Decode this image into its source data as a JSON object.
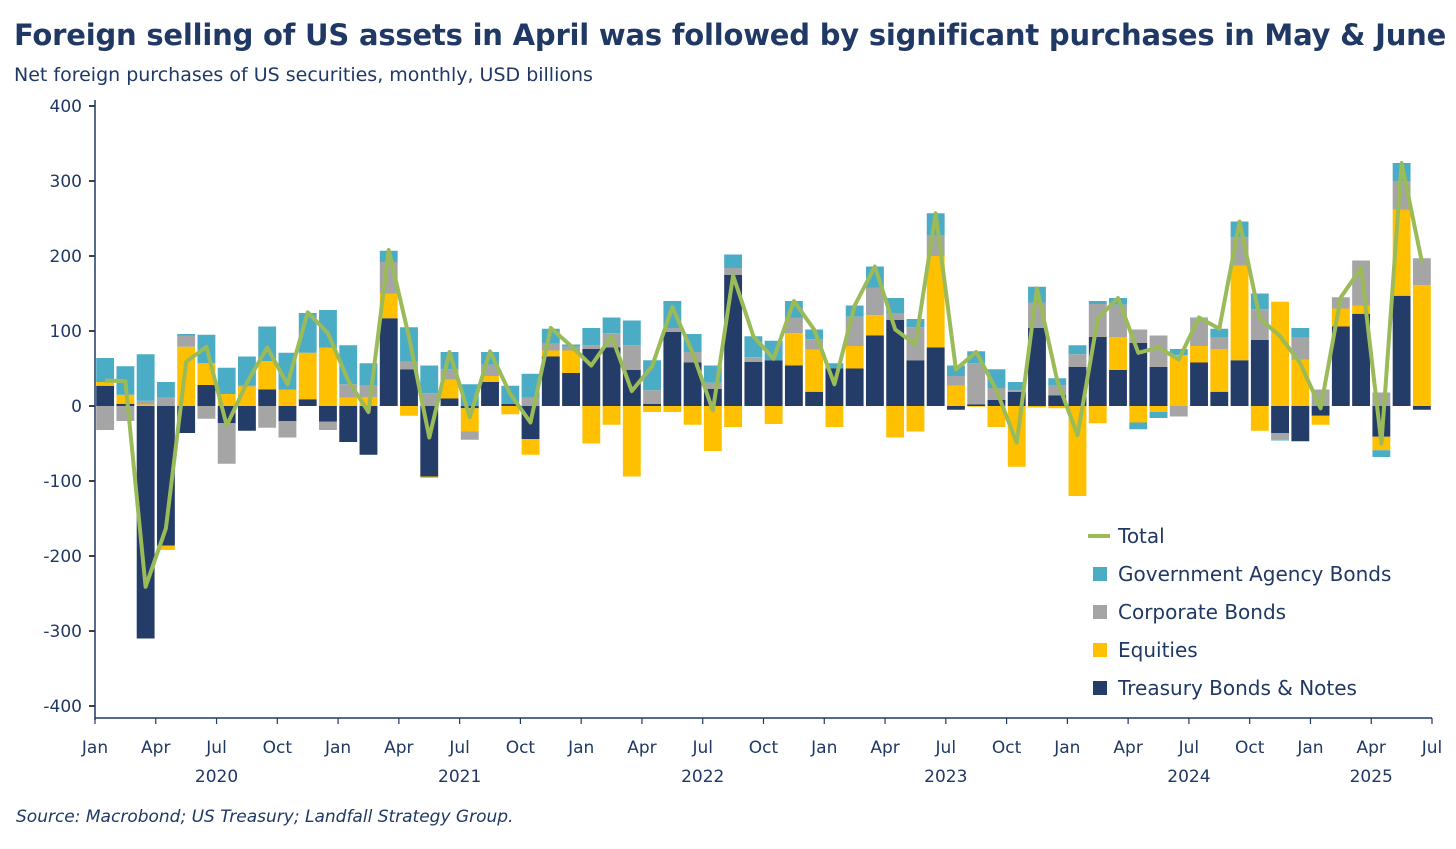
{
  "chart_data": {
    "type": "bar",
    "stacked": true,
    "title": "Foreign selling of US assets in April was followed by significant purchases in May & June",
    "subtitle": "Net foreign purchases of US securities, monthly, USD billions",
    "source": "Source: Macrobond; US Treasury; Landfall Strategy Group.",
    "ylim": [
      -400,
      400
    ],
    "yticks": [
      400,
      300,
      200,
      100,
      0,
      -100,
      -200,
      -300,
      -400
    ],
    "x_start": "2020-01",
    "month_tick_labels": [
      "Jan",
      "Apr",
      "Jul",
      "Oct"
    ],
    "month_tick_step": 3,
    "axis_end_label": "Jul",
    "years": [
      "2020",
      "2021",
      "2022",
      "2023",
      "2024",
      "2025"
    ],
    "legend_position": "bottom-right",
    "colors": {
      "treasury": "#243c68",
      "equities": "#ffc000",
      "corporate": "#a5a5a5",
      "agency": "#4bacc6",
      "total": "#9bbb59"
    },
    "legend": [
      {
        "key": "total",
        "label": "Total",
        "kind": "line"
      },
      {
        "key": "agency",
        "label": "Government Agency Bonds",
        "kind": "bar"
      },
      {
        "key": "corporate",
        "label": "Corporate Bonds",
        "kind": "bar"
      },
      {
        "key": "equities",
        "label": "Equities",
        "kind": "bar"
      },
      {
        "key": "treasury",
        "label": "Treasury Bonds & Notes",
        "kind": "bar"
      }
    ],
    "series": [
      {
        "key": "treasury",
        "name": "Treasury Bonds & Notes",
        "values": [
          27,
          3,
          -310,
          -186,
          -36,
          28,
          -23,
          -33,
          22,
          -20,
          9,
          -21,
          -48,
          -65,
          117,
          49,
          -94,
          10,
          -3,
          32,
          3,
          -44,
          66,
          44,
          76,
          78,
          48,
          3,
          99,
          58,
          23,
          175,
          59,
          61,
          54,
          19,
          50,
          50,
          94,
          115,
          61,
          78,
          -5,
          2,
          8,
          19,
          104,
          14,
          52,
          92,
          48,
          84,
          52,
          0,
          58,
          19,
          61,
          88,
          -36,
          -47,
          -13,
          106,
          123,
          -41,
          147,
          -5
        ]
      },
      {
        "key": "equities",
        "name": "Equities",
        "values": [
          5,
          12,
          2,
          -6,
          79,
          29,
          16,
          26,
          38,
          22,
          62,
          78,
          11,
          12,
          33,
          -13,
          -2,
          25,
          -31,
          8,
          -11,
          -21,
          8,
          30,
          -50,
          -25,
          -94,
          -8,
          -8,
          -25,
          -60,
          -28,
          0,
          -24,
          43,
          56,
          -28,
          30,
          27,
          -42,
          -34,
          122,
          27,
          -1,
          -28,
          -81,
          -2,
          -3,
          -120,
          -23,
          44,
          -22,
          -8,
          68,
          22,
          57,
          126,
          -33,
          139,
          62,
          -12,
          24,
          11,
          -18,
          115,
          161
        ]
      },
      {
        "key": "corporate",
        "name": "Corporate Bonds",
        "values": [
          -32,
          -20,
          5,
          11,
          15,
          -17,
          -54,
          2,
          -29,
          -22,
          0,
          -11,
          18,
          16,
          42,
          10,
          17,
          14,
          -11,
          15,
          0,
          11,
          9,
          5,
          5,
          19,
          33,
          18,
          5,
          14,
          8,
          9,
          6,
          0,
          21,
          14,
          0,
          39,
          37,
          9,
          44,
          28,
          13,
          55,
          16,
          2,
          34,
          14,
          17,
          44,
          43,
          18,
          42,
          -14,
          37,
          16,
          38,
          41,
          -9,
          29,
          22,
          15,
          60,
          18,
          38,
          36
        ]
      },
      {
        "key": "agency",
        "name": "Government Agency Bonds",
        "values": [
          32,
          38,
          62,
          21,
          2,
          38,
          35,
          38,
          46,
          49,
          53,
          50,
          52,
          29,
          15,
          46,
          37,
          23,
          29,
          17,
          24,
          32,
          20,
          3,
          23,
          21,
          33,
          40,
          36,
          24,
          23,
          18,
          28,
          26,
          22,
          13,
          7,
          15,
          28,
          20,
          11,
          29,
          14,
          16,
          25,
          11,
          21,
          9,
          12,
          4,
          9,
          -9,
          -8,
          8,
          1,
          11,
          21,
          21,
          -1,
          13,
          0,
          0,
          0,
          -9,
          24,
          0
        ]
      },
      {
        "key": "total",
        "name": "Total",
        "values": [
          34,
          33,
          -241,
          -163,
          59,
          79,
          -26,
          31,
          78,
          29,
          125,
          97,
          34,
          -8,
          208,
          92,
          -42,
          72,
          -15,
          73,
          16,
          -22,
          104,
          80,
          54,
          93,
          20,
          53,
          132,
          71,
          -6,
          174,
          93,
          63,
          140,
          102,
          29,
          134,
          186,
          102,
          82,
          257,
          49,
          72,
          21,
          -49,
          157,
          34,
          -39,
          117,
          144,
          71,
          78,
          62,
          118,
          103,
          246,
          117,
          93,
          57,
          -3,
          145,
          184,
          -50,
          324,
          192
        ]
      }
    ]
  }
}
